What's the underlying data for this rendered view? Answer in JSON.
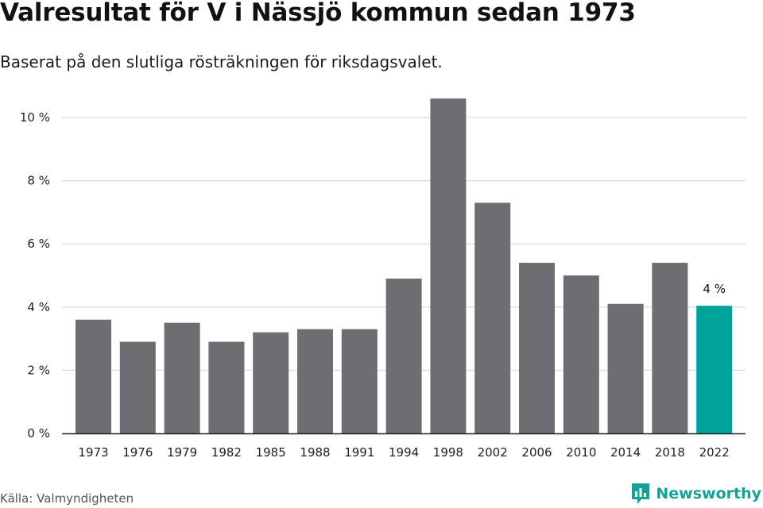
{
  "header": {
    "title": "Valresultat för V i Nässjö kommun sedan 1973",
    "subtitle": "Baserat på den slutliga rösträkningen för riksdagsvalet."
  },
  "footer": {
    "source": "Källa: Valmyndigheten",
    "brand": "Newsworthy",
    "brand_icon": "newsworthy-logo-icon"
  },
  "colors": {
    "bar": "#6e6d72",
    "highlight": "#00a39a",
    "grid": "#d9d9d9",
    "axis": "#222222",
    "brand": "#12a394"
  },
  "chart_data": {
    "type": "bar",
    "categories": [
      "1973",
      "1976",
      "1979",
      "1982",
      "1985",
      "1988",
      "1991",
      "1994",
      "1998",
      "2002",
      "2006",
      "2010",
      "2014",
      "2018",
      "2022"
    ],
    "values": [
      3.6,
      2.9,
      3.5,
      2.9,
      3.2,
      3.3,
      3.3,
      4.9,
      10.6,
      7.3,
      5.4,
      5.0,
      4.1,
      5.4,
      4.04
    ],
    "title": "Valresultat för V i Nässjö kommun sedan 1973",
    "subtitle": "Baserat på den slutliga rösträkningen för riksdagsvalet.",
    "xlabel": "",
    "ylabel": "",
    "ylim": [
      0,
      10
    ],
    "yticks": [
      {
        "value": 0,
        "label": "0 %"
      },
      {
        "value": 2,
        "label": "2 %"
      },
      {
        "value": 4,
        "label": "4 %"
      },
      {
        "value": 6,
        "label": "6 %"
      },
      {
        "value": 8,
        "label": "8 %"
      },
      {
        "value": 10,
        "label": "10 %"
      }
    ],
    "grid": true,
    "highlight_index": 14,
    "highlight_label": "4 %"
  }
}
